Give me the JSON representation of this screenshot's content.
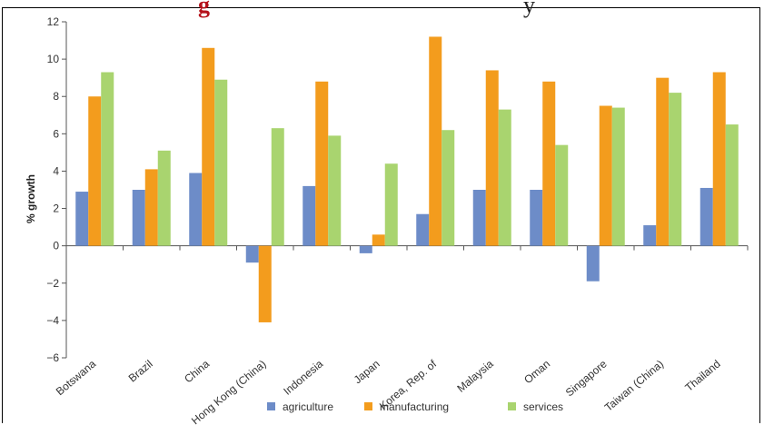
{
  "header": {
    "title_fragment_red": "g",
    "title_fragment_dark": "y"
  },
  "chart_data": {
    "type": "bar",
    "title": "",
    "xlabel": "",
    "ylabel": "% growth",
    "ylim": [
      -6,
      12
    ],
    "yticks": [
      -6,
      -4,
      -2,
      0,
      2,
      4,
      6,
      8,
      10,
      12
    ],
    "ytick_labels": [
      "−6",
      "−4",
      "−2",
      "0",
      "2",
      "4",
      "6",
      "8",
      "10",
      "12"
    ],
    "grid": false,
    "legend_position": "bottom",
    "categories": [
      "Botswana",
      "Brazil",
      "China",
      "Hong Kong (China)",
      "Indonesia",
      "Japan",
      "Korea, Rep. of",
      "Malaysia",
      "Oman",
      "Singapore",
      "Taiwan (China)",
      "Thailand"
    ],
    "series": [
      {
        "name": "agriculture",
        "color": "#6d8cc8",
        "values": [
          2.9,
          3.0,
          3.9,
          -0.9,
          3.2,
          -0.4,
          1.7,
          3.0,
          3.0,
          -1.9,
          1.1,
          3.1
        ]
      },
      {
        "name": "manufacturing",
        "color": "#f39c1d",
        "values": [
          8.0,
          4.1,
          10.6,
          -4.1,
          8.8,
          0.6,
          11.2,
          9.4,
          8.8,
          7.5,
          9.0,
          9.3
        ]
      },
      {
        "name": "services",
        "color": "#a9d46f",
        "values": [
          9.3,
          5.1,
          8.9,
          6.3,
          5.9,
          4.4,
          6.2,
          7.3,
          5.4,
          7.4,
          8.2,
          6.5
        ]
      }
    ]
  }
}
